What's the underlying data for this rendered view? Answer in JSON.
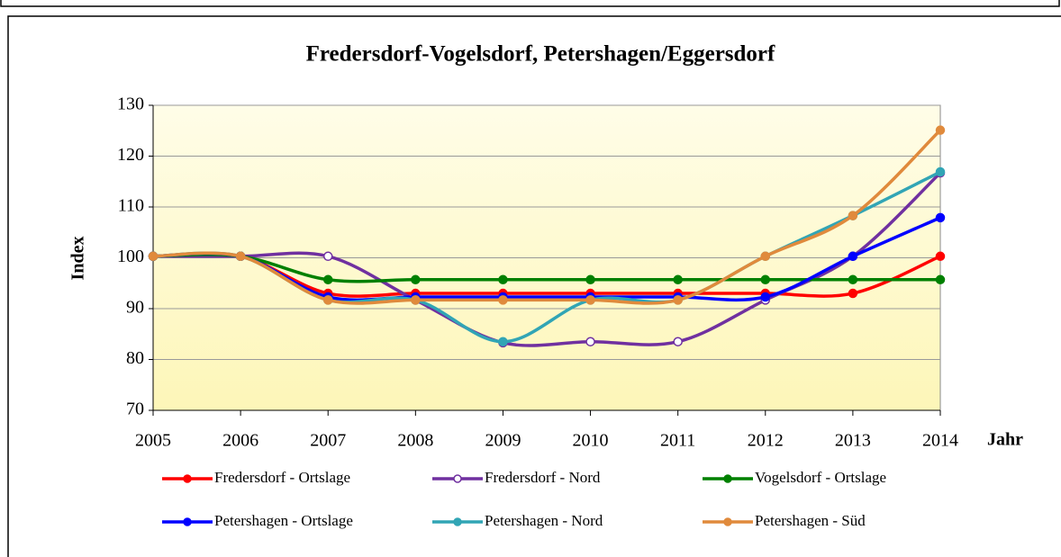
{
  "chart_data": {
    "type": "line",
    "title": "Fredersdorf-Vogelsdorf, Petershagen/Eggersdorf",
    "y_label": "Index",
    "x_label": "Jahr",
    "categories": [
      "2005",
      "2006",
      "2007",
      "2008",
      "2009",
      "2010",
      "2011",
      "2012",
      "2013",
      "2014"
    ],
    "ylim": [
      70,
      130
    ],
    "yticks": [
      70,
      80,
      90,
      100,
      110,
      120,
      130
    ],
    "grid": true,
    "smooth": true,
    "series": [
      {
        "name": "Fredersdorf - Ortslage",
        "color": "#ff0000",
        "marker": "filled",
        "values": [
          100.3,
          100.3,
          93,
          93,
          93,
          93,
          93,
          93,
          93,
          100.3
        ]
      },
      {
        "name": "Fredersdorf - Nord",
        "color": "#7030a0",
        "marker": "open",
        "values": [
          100.3,
          100.3,
          100.3,
          91.7,
          83.3,
          83.5,
          83.5,
          91.7,
          100.3,
          116.7
        ]
      },
      {
        "name": "Vogelsdorf - Ortslage",
        "color": "#008000",
        "marker": "filled",
        "values": [
          100.3,
          100.3,
          95.7,
          95.7,
          95.7,
          95.7,
          95.7,
          95.7,
          95.7,
          95.7
        ]
      },
      {
        "name": "Petershagen - Ortslage",
        "color": "#0000ff",
        "marker": "filled",
        "values": [
          100.3,
          100.3,
          92.3,
          92.3,
          92.3,
          92.3,
          92.3,
          92.3,
          100.3,
          107.9
        ]
      },
      {
        "name": "Petershagen - Nord",
        "color": "#31a5b5",
        "marker": "filled",
        "values": [
          100.3,
          100.3,
          91.7,
          91.7,
          83.5,
          91.7,
          91.7,
          100.3,
          108.3,
          116.9
        ]
      },
      {
        "name": "Petershagen - Süd",
        "color": "#e08a3c",
        "marker": "filled",
        "values": [
          100.3,
          100.3,
          91.7,
          91.7,
          91.7,
          91.7,
          91.7,
          100.3,
          108.3,
          125.1
        ]
      }
    ]
  }
}
